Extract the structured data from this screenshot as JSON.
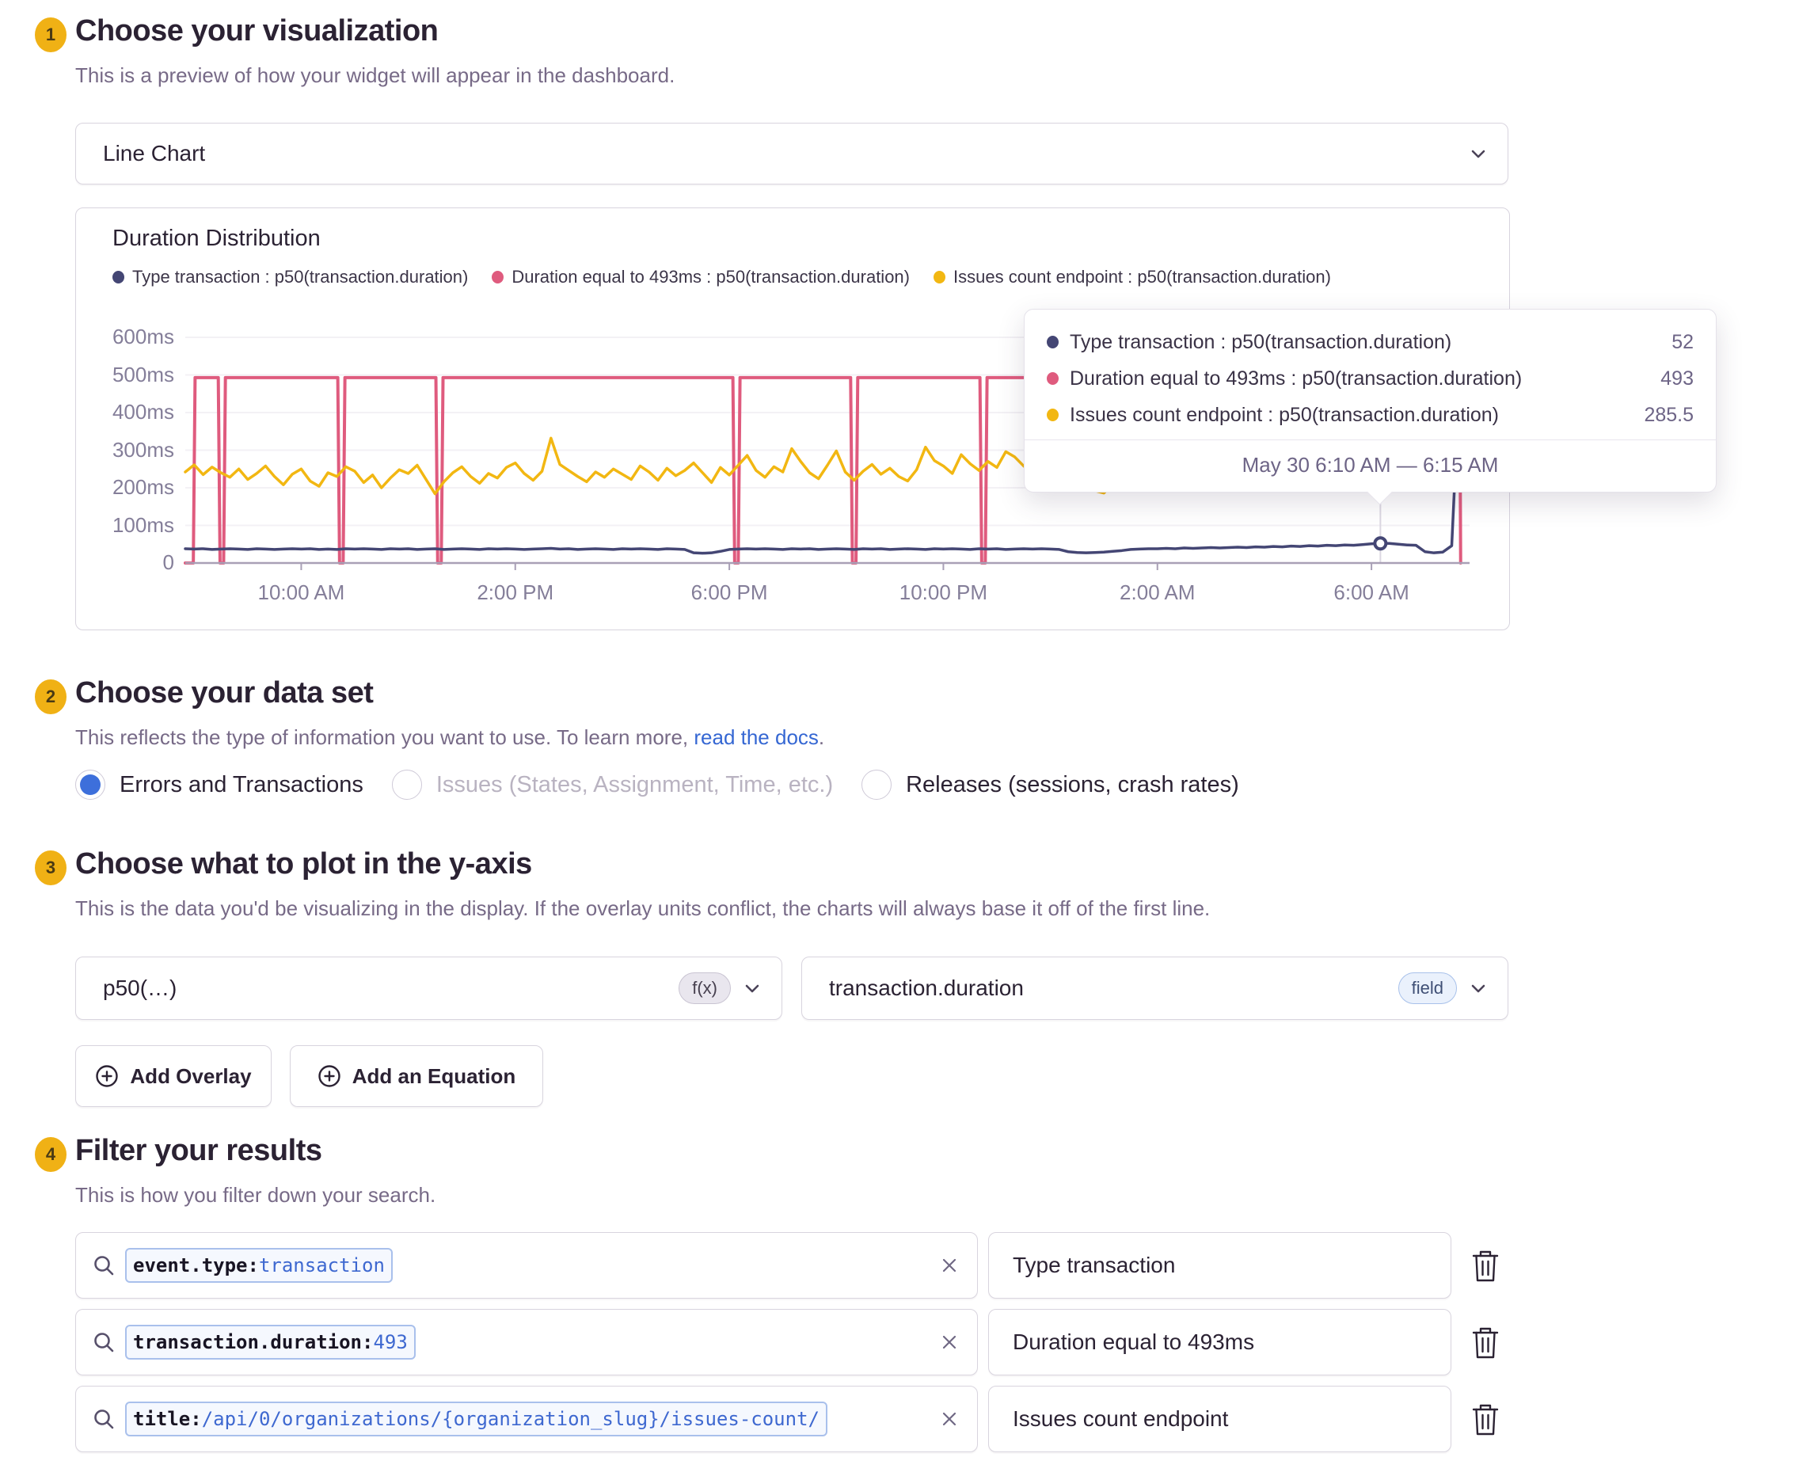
{
  "colors": {
    "accent_badge": "#f0b115",
    "heading": "#2b2233",
    "muted": "#776a87",
    "link_blue": "#3567d3",
    "radio_blue": "#3d6fdb",
    "series_navy": "#444674",
    "series_pink": "#df5b7e",
    "series_yellow": "#f2b712"
  },
  "section1": {
    "number": "1",
    "title": "Choose your visualization",
    "subtitle": "This is a preview of how your widget will appear in the dashboard.",
    "visualization_select_value": "Line Chart"
  },
  "chart_data": {
    "type": "line",
    "title": "Duration Distribution",
    "unit": "ms",
    "ylim": [
      0,
      650
    ],
    "yticks": [
      0,
      100,
      200,
      300,
      400,
      500,
      600
    ],
    "ytick_labels": [
      "0",
      "100ms",
      "200ms",
      "300ms",
      "400ms",
      "500ms",
      "600ms"
    ],
    "grid": "horizontal-faint",
    "legend_position": "top-left",
    "x_domain_minutes": [
      0,
      1440
    ],
    "x_domain_note": "minutes across ~24h ending May 30 ~7:50 AM",
    "xticks": [
      {
        "minute": 130,
        "label": "10:00 AM"
      },
      {
        "minute": 370,
        "label": "2:00 PM"
      },
      {
        "minute": 610,
        "label": "6:00 PM"
      },
      {
        "minute": 850,
        "label": "10:00 PM"
      },
      {
        "minute": 1090,
        "label": "2:00 AM"
      },
      {
        "minute": 1330,
        "label": "6:00 AM"
      }
    ],
    "series": [
      {
        "name": "Type transaction : p50(transaction.duration)",
        "color": "#444674",
        "sample_step_minutes": 10,
        "values": [
          38,
          37,
          38,
          36,
          37,
          38,
          37,
          36,
          38,
          37,
          36,
          37,
          38,
          37,
          38,
          36,
          37,
          36,
          38,
          37,
          38,
          37,
          36,
          38,
          37,
          38,
          36,
          37,
          38,
          36,
          37,
          38,
          37,
          36,
          38,
          37,
          38,
          37,
          36,
          37,
          38,
          39,
          37,
          38,
          36,
          37,
          38,
          37,
          36,
          38,
          37,
          38,
          37,
          36,
          38,
          37,
          36,
          27,
          26,
          27,
          31,
          36,
          37,
          38,
          37,
          38,
          37,
          36,
          38,
          37,
          38,
          36,
          37,
          38,
          37,
          36,
          38,
          37,
          38,
          36,
          37,
          38,
          37,
          36,
          38,
          37,
          38,
          37,
          36,
          38,
          37,
          38,
          36,
          37,
          38,
          37,
          38,
          37,
          36,
          30,
          28,
          27,
          28,
          29,
          31,
          33,
          36,
          37,
          38,
          38,
          39,
          38,
          40,
          39,
          40,
          41,
          40,
          41,
          42,
          41,
          43,
          42,
          44,
          43,
          45,
          44,
          46,
          45,
          47,
          46,
          48,
          47,
          49,
          51,
          52,
          52,
          50,
          48,
          47,
          30,
          27,
          29,
          46,
          555
        ]
      },
      {
        "name": "Duration equal to 493ms : p50(transaction.duration)",
        "color": "#df5b7e",
        "points": [
          [
            0,
            0
          ],
          [
            9,
            0
          ],
          [
            11,
            493
          ],
          [
            37,
            493
          ],
          [
            39,
            0
          ],
          [
            43,
            0
          ],
          [
            45,
            493
          ],
          [
            171,
            493
          ],
          [
            173,
            0
          ],
          [
            177,
            0
          ],
          [
            179,
            493
          ],
          [
            281,
            493
          ],
          [
            283,
            0
          ],
          [
            287,
            0
          ],
          [
            289,
            493
          ],
          [
            614,
            493
          ],
          [
            616,
            0
          ],
          [
            620,
            0
          ],
          [
            622,
            493
          ],
          [
            746,
            493
          ],
          [
            748,
            0
          ],
          [
            752,
            0
          ],
          [
            754,
            493
          ],
          [
            891,
            493
          ],
          [
            893,
            0
          ],
          [
            897,
            0
          ],
          [
            899,
            493
          ],
          [
            1429,
            493
          ],
          [
            1430,
            0
          ]
        ]
      },
      {
        "name": "Issues count endpoint : p50(transaction.duration)",
        "color": "#f2b712",
        "sample_step_minutes": 10,
        "values": [
          242,
          261,
          235,
          255,
          240,
          228,
          250,
          222,
          238,
          258,
          230,
          208,
          236,
          250,
          218,
          204,
          240,
          230,
          256,
          244,
          214,
          234,
          200,
          226,
          248,
          238,
          260,
          222,
          184,
          216,
          240,
          256,
          230,
          212,
          238,
          226,
          254,
          266,
          238,
          220,
          244,
          332,
          262,
          246,
          230,
          216,
          242,
          228,
          250,
          236,
          222,
          258,
          242,
          220,
          252,
          232,
          246,
          266,
          240,
          214,
          254,
          234,
          260,
          286,
          246,
          228,
          256,
          242,
          304,
          270,
          240,
          224,
          260,
          298,
          242,
          220,
          244,
          262,
          236,
          252,
          230,
          218,
          248,
          308,
          272,
          258,
          238,
          288,
          264,
          246,
          270,
          254,
          296,
          282,
          258,
          238,
          270,
          292,
          260,
          242,
          222,
          202,
          192,
          186,
          210,
          228,
          206,
          222,
          248,
          220,
          236,
          212,
          240,
          226,
          248,
          232,
          216,
          242,
          232,
          222,
          244,
          236,
          230,
          242,
          234,
          240,
          232,
          228,
          240,
          234,
          238,
          232,
          226,
          238,
          232,
          236,
          230,
          234,
          228,
          238,
          232,
          230,
          236,
          240
        ]
      }
    ],
    "hovered_point": {
      "minute": 1340,
      "marker_series": 0,
      "marker_value": 52
    }
  },
  "tooltip": {
    "rows": [
      {
        "label": "Type transaction : p50(transaction.duration)",
        "value": "52"
      },
      {
        "label": "Duration equal to 493ms : p50(transaction.duration)",
        "value": "493"
      },
      {
        "label": "Issues count endpoint : p50(transaction.duration)",
        "value": "285.5"
      }
    ],
    "date_range": "May 30 6:10 AM — 6:15 AM"
  },
  "section2": {
    "number": "2",
    "title": "Choose your data set",
    "subtitle_prefix": "This reflects the type of information you want to use. To learn more, ",
    "subtitle_link": "read the docs",
    "subtitle_suffix": ".",
    "options": [
      {
        "label": "Errors and Transactions",
        "selected": true,
        "disabled": false
      },
      {
        "label": "Issues (States, Assignment, Time, etc.)",
        "selected": false,
        "disabled": true
      },
      {
        "label": "Releases (sessions, crash rates)",
        "selected": false,
        "disabled": false
      }
    ]
  },
  "section3": {
    "number": "3",
    "title": "Choose what to plot in the y-axis",
    "subtitle": "This is the data you'd be visualizing in the display. If the overlay units conflict, the charts will always base it off of the first line.",
    "function_field": {
      "value": "p50(…)",
      "badge": "f(x)"
    },
    "parameter_field": {
      "value": "transaction.duration",
      "badge": "field"
    },
    "add_overlay_label": "Add Overlay",
    "add_equation_label": "Add an Equation"
  },
  "section4": {
    "number": "4",
    "title": "Filter your results",
    "subtitle": "This is how you filter down your search.",
    "filters": [
      {
        "query_key": "event.type:",
        "query_value": "transaction",
        "alias": "Type transaction"
      },
      {
        "query_key": "transaction.duration:",
        "query_value": "493",
        "alias": "Duration equal to 493ms"
      },
      {
        "query_key": "title:",
        "query_value": "/api/0/organizations/{organization_slug}/issues-count/",
        "alias": "Issues count endpoint"
      }
    ]
  }
}
